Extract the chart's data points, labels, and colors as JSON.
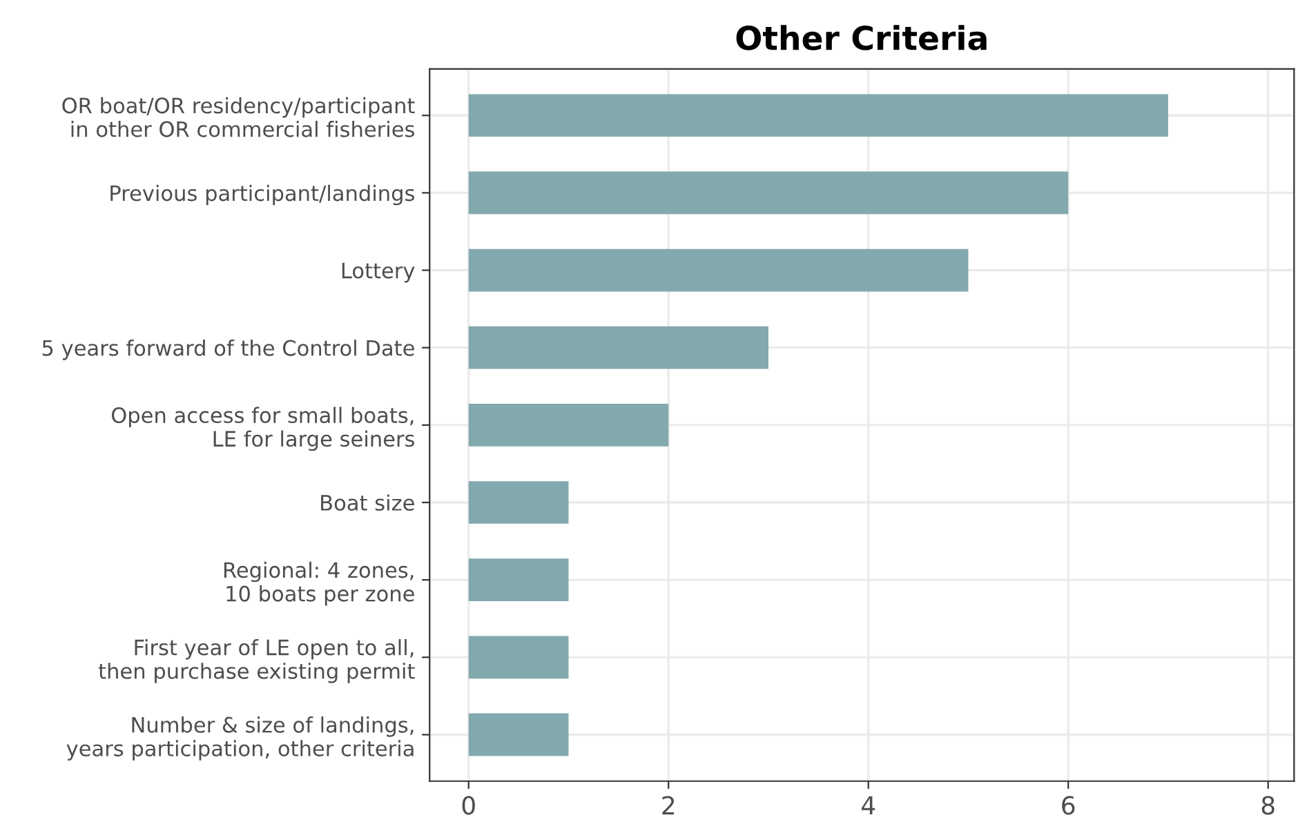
{
  "chart_data": {
    "type": "bar",
    "orientation": "horizontal",
    "title": "Other Criteria",
    "categories": [
      "OR boat/OR residency/participant\nin other OR commercial fisheries",
      "Previous participant/landings",
      "Lottery",
      "5 years forward of the Control Date",
      "Open access for small boats,\nLE for large seiners",
      "Boat size",
      "Regional: 4 zones,\n10 boats per zone",
      "First year of LE open to all,\nthen purchase existing permit",
      "Number & size of landings,\nyears participation, other criteria"
    ],
    "values": [
      7,
      6,
      5,
      3,
      2,
      1,
      1,
      1,
      1
    ],
    "color": "#82a9ae",
    "xlim": [
      -0.39,
      8.26
    ],
    "xticks": [
      0,
      2,
      4,
      6,
      8
    ],
    "grid": true
  }
}
